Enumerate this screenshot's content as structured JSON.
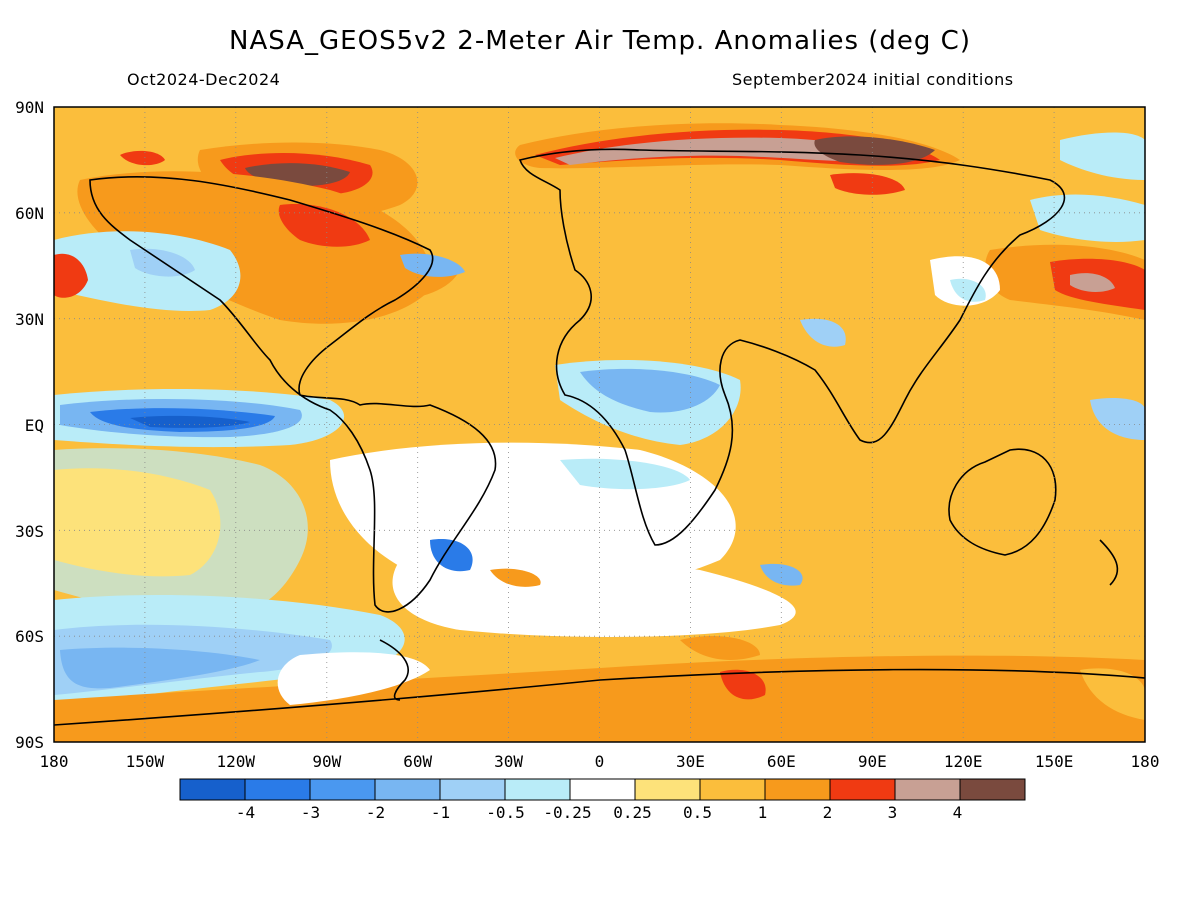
{
  "title": "NASA_GEOS5v2 2-Meter Air Temp. Anomalies (deg C)",
  "period": "Oct2024-Dec2024",
  "initial_conditions": "September2024 initial conditions",
  "map": {
    "lat_labels": [
      "90N",
      "60N",
      "30N",
      "EQ",
      "30S",
      "60S",
      "90S"
    ],
    "lon_labels": [
      "180",
      "150W",
      "120W",
      "90W",
      "60W",
      "30W",
      "0",
      "30E",
      "60E",
      "90E",
      "120E",
      "150E",
      "180"
    ]
  },
  "colorbar": {
    "colors": [
      "#1660cc",
      "#2a7be8",
      "#4a98f0",
      "#78b6f2",
      "#9fd0f6",
      "#b9ecf8",
      "#ffffff",
      "#fde27a",
      "#fbbe3c",
      "#f79a1c",
      "#f03a12",
      "#c8a094",
      "#7a4a3e"
    ],
    "labels": [
      "-4",
      "-3",
      "-2",
      "-1",
      "-0.5",
      "-0.25",
      "0.25",
      "0.5",
      "1",
      "2",
      "3",
      "4"
    ]
  }
}
